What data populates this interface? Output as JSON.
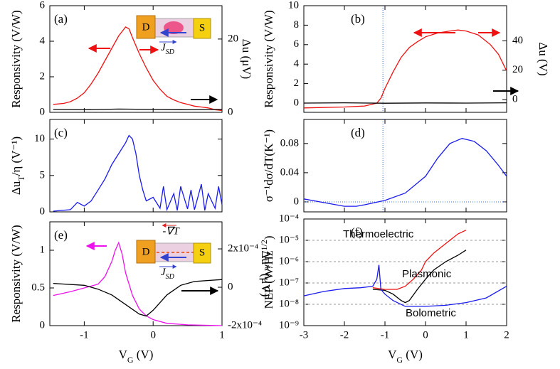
{
  "chart_data": [
    {
      "type": "line",
      "title": "(a)",
      "ylabel": [
        "Responsivity (V/W)"
      ],
      "y2label": "Δu (μV)",
      "xlim": [
        -1.5,
        1
      ],
      "xticks": [
        -1,
        0,
        1
      ],
      "ylim": [
        0,
        6
      ],
      "yticks": [
        0,
        2,
        4,
        6
      ],
      "y2lim": [
        0,
        29.1
      ],
      "y2ticks": [
        0,
        20
      ],
      "annotations": [
        "D",
        "S",
        "J",
        "SD"
      ],
      "series": [
        {
          "color": "#ee1111",
          "x": [
            -1.45,
            -1.3,
            -1.2,
            -1.1,
            -1.0,
            -0.9,
            -0.8,
            -0.7,
            -0.6,
            -0.5,
            -0.4,
            -0.35,
            -0.3,
            -0.2,
            -0.1,
            0,
            0.1,
            0.2,
            0.3,
            0.4,
            0.5,
            0.6,
            0.7,
            0.8,
            0.9,
            1.0
          ],
          "values": [
            0.45,
            0.5,
            0.6,
            0.8,
            1.1,
            1.6,
            2.2,
            2.9,
            3.6,
            4.3,
            4.8,
            4.7,
            4.2,
            3.3,
            2.5,
            1.8,
            1.3,
            0.9,
            0.7,
            0.55,
            0.45,
            0.35,
            0.3,
            0.25,
            0.15,
            0.1
          ]
        },
        {
          "color": "#000000",
          "axis": "y2",
          "x": [
            -1.45,
            -1,
            -0.5,
            0,
            0.5,
            1
          ],
          "values": [
            0.8,
            0.7,
            0.9,
            0.8,
            0.7,
            0.8
          ]
        }
      ]
    },
    {
      "type": "line",
      "title": "(b)",
      "ylabel": [
        "Responsivity (V/W)"
      ],
      "y2label": "Δu (V)",
      "xlim": [
        -3,
        2
      ],
      "xticks": [
        -3,
        -2,
        -1,
        0,
        1,
        2
      ],
      "ylim": [
        -0.95,
        10
      ],
      "yticks": [
        0,
        2,
        4,
        6,
        8,
        10
      ],
      "y2lim": [
        -8.7,
        64
      ],
      "y2ticks": [
        0,
        20,
        40
      ],
      "vline": -1.05,
      "series": [
        {
          "color": "#ee1111",
          "x": [
            -3,
            -2,
            -1.5,
            -1.2,
            -1.1,
            -1,
            -0.8,
            -0.6,
            -0.4,
            -0.2,
            0,
            0.3,
            0.6,
            0.8,
            1.0,
            1.3,
            1.6,
            1.8,
            2.0
          ],
          "values": [
            -0.5,
            -0.4,
            -0.3,
            0,
            0.5,
            1.5,
            3.2,
            4.7,
            5.7,
            6.3,
            6.8,
            7.2,
            7.4,
            7.5,
            7.4,
            7,
            6,
            5,
            3.3
          ]
        },
        {
          "color": "#000000",
          "axis": "y2",
          "x": [
            -3,
            -2,
            -1,
            0,
            1,
            2
          ],
          "values": [
            -2.4,
            -2.2,
            -2.5,
            -2.3,
            -2.4,
            -2.2
          ]
        }
      ]
    },
    {
      "type": "line",
      "title": "(c)",
      "ylabel": [
        "Δu",
        "T",
        "/η (V⁻¹)"
      ],
      "ylabel_script": "sub",
      "xlim": [
        -1.5,
        1
      ],
      "xticks": [
        -1,
        0,
        1
      ],
      "ylim": [
        0,
        12.7
      ],
      "yticks": [
        0,
        5,
        10
      ],
      "series": [
        {
          "color": "#1a1aee",
          "x": [
            -1.45,
            -1.2,
            -1.1,
            -1.0,
            -0.9,
            -0.8,
            -0.7,
            -0.6,
            -0.5,
            -0.4,
            -0.35,
            -0.3,
            -0.25,
            -0.2,
            -0.15,
            -0.1,
            0,
            0.1,
            0.15,
            0.2,
            0.3,
            0.35,
            0.4,
            0.5,
            0.55,
            0.6,
            0.7,
            0.75,
            0.8,
            0.9,
            0.95,
            1.0
          ],
          "values": [
            0.1,
            0.3,
            1.3,
            0.8,
            1.5,
            3,
            4.5,
            6.5,
            8,
            9.5,
            10.5,
            10,
            8,
            5,
            3,
            1.5,
            2,
            0.5,
            3.5,
            0.3,
            2.5,
            0.2,
            3.5,
            0.4,
            3,
            0.3,
            3.8,
            0.2,
            2.5,
            0.5,
            3.5,
            1
          ]
        }
      ]
    },
    {
      "type": "line",
      "title": "(d)",
      "ylabel": [
        "σ⁻¹dσ/dT(K⁻¹)"
      ],
      "xlim": [
        -3,
        2
      ],
      "xticks": [
        -3,
        -2,
        -1,
        0,
        1,
        2
      ],
      "ylim": [
        -0.0137,
        0.113
      ],
      "yticks": [
        0,
        0.04,
        0.08
      ],
      "vline": -1.05,
      "hline": 0,
      "series": [
        {
          "color": "#1a1aee",
          "x": [
            -3,
            -2.5,
            -2,
            -1.7,
            -1.5,
            -1,
            -0.5,
            0,
            0.3,
            0.6,
            0.9,
            1.2,
            1.5,
            1.8,
            2
          ],
          "values": [
            0.004,
            -0.001,
            -0.006,
            -0.006,
            -0.004,
            0.002,
            0.012,
            0.035,
            0.06,
            0.08,
            0.087,
            0.083,
            0.07,
            0.05,
            0.035
          ]
        }
      ]
    },
    {
      "type": "line",
      "title": "(e)",
      "ylabel": [
        "Responsivity (V/W)"
      ],
      "y2label": "Δu* (μV)",
      "xlabel": [
        "V",
        "G",
        " (V)"
      ],
      "xlim": [
        -1.5,
        1
      ],
      "xticks": [
        -1,
        0,
        1
      ],
      "ylim": [
        0,
        1.377
      ],
      "yticks": [
        0,
        0.5,
        1
      ],
      "y2lim": [
        -0.0002,
        0.000341
      ],
      "y2ticks": [
        {
          "value": 0.0002,
          "label": "2x10⁻⁴"
        },
        0,
        {
          "value": -0.0002,
          "label": "-2x10⁻⁴"
        }
      ],
      "annotations": [
        "D",
        "S",
        "J",
        "SD",
        "-∇T"
      ],
      "series": [
        {
          "color": "#ee11ee",
          "x": [
            -1.45,
            -1.2,
            -1,
            -0.8,
            -0.7,
            -0.6,
            -0.55,
            -0.5,
            -0.45,
            -0.4,
            -0.3,
            -0.2,
            -0.1,
            0,
            0.2,
            0.5,
            1
          ],
          "values": [
            0.4,
            0.45,
            0.5,
            0.55,
            0.65,
            0.85,
            1.0,
            1.1,
            0.95,
            0.7,
            0.4,
            0.22,
            0.13,
            0.08,
            0.03,
            0.01,
            0
          ]
        },
        {
          "color": "#000000",
          "axis": "y2",
          "x": [
            -1.45,
            -1,
            -0.8,
            -0.6,
            -0.4,
            -0.2,
            -0.1,
            0,
            0.2,
            0.4,
            0.6,
            1
          ],
          "values": [
            2e-05,
            1e-05,
            -1e-05,
            -4e-05,
            -9e-05,
            -0.00014,
            -0.00015,
            -0.00012,
            -4e-05,
            1e-05,
            3e-05,
            4e-05
          ]
        }
      ]
    },
    {
      "type": "line",
      "title": "(f)",
      "ylabel": [
        "NEP (W/Hz",
        "1/2",
        ")"
      ],
      "ylabel_script": "super",
      "xlabel": [
        "V",
        "G",
        " (V)"
      ],
      "xlim": [
        -3,
        2
      ],
      "xticks": [
        -3,
        -2,
        -1,
        0,
        1,
        2
      ],
      "ylim": [
        1e-09,
        0.0001
      ],
      "log_y": true,
      "grid": true,
      "yticks": [
        {
          "value": 1e-09,
          "label": "10⁻⁹"
        },
        {
          "value": 1e-08,
          "label": "10⁻⁸"
        },
        {
          "value": 1e-07,
          "label": "10⁻⁷"
        },
        {
          "value": 1e-06,
          "label": "10⁻⁶"
        },
        {
          "value": 1e-05,
          "label": "10⁻⁵"
        },
        {
          "value": 0.0001,
          "label": "10⁻⁴"
        }
      ],
      "series": [
        {
          "name": "Thermoelectric",
          "color": "#ee1111",
          "x": [
            -1.3,
            -1,
            -0.7,
            -0.5,
            -0.3,
            -0.1,
            0,
            0.2,
            0.4,
            0.6,
            0.8,
            1
          ],
          "values": [
            6e-08,
            5e-08,
            5e-08,
            7e-08,
            1.5e-07,
            4e-07,
            1e-06,
            2.5e-06,
            5e-06,
            1e-05,
            2e-05,
            3e-05
          ]
        },
        {
          "name": "Plasmonic",
          "color": "#000000",
          "x": [
            -1.3,
            -1,
            -0.8,
            -0.6,
            -0.5,
            -0.4,
            -0.2,
            0,
            0.2,
            0.5,
            0.8,
            1
          ],
          "values": [
            5e-08,
            4.5e-08,
            3e-08,
            1.5e-08,
            1.2e-08,
            1.5e-08,
            5e-08,
            1.5e-07,
            4e-07,
            1e-06,
            2e-06,
            3.5e-06
          ]
        },
        {
          "name": "Bolometric",
          "color": "#1a1aee",
          "x": [
            -3,
            -2.5,
            -2,
            -1.6,
            -1.3,
            -1.2,
            -1.15,
            -1.1,
            -1,
            -0.8,
            -0.5,
            0,
            0.5,
            1,
            1.5,
            2
          ],
          "values": [
            2.5e-08,
            4e-08,
            5.5e-08,
            6e-08,
            7e-08,
            1.5e-07,
            7e-07,
            5e-08,
            3e-08,
            1.5e-08,
            8e-09,
            8e-09,
            9e-09,
            1.2e-08,
            2e-08,
            7e-08
          ]
        }
      ]
    }
  ]
}
